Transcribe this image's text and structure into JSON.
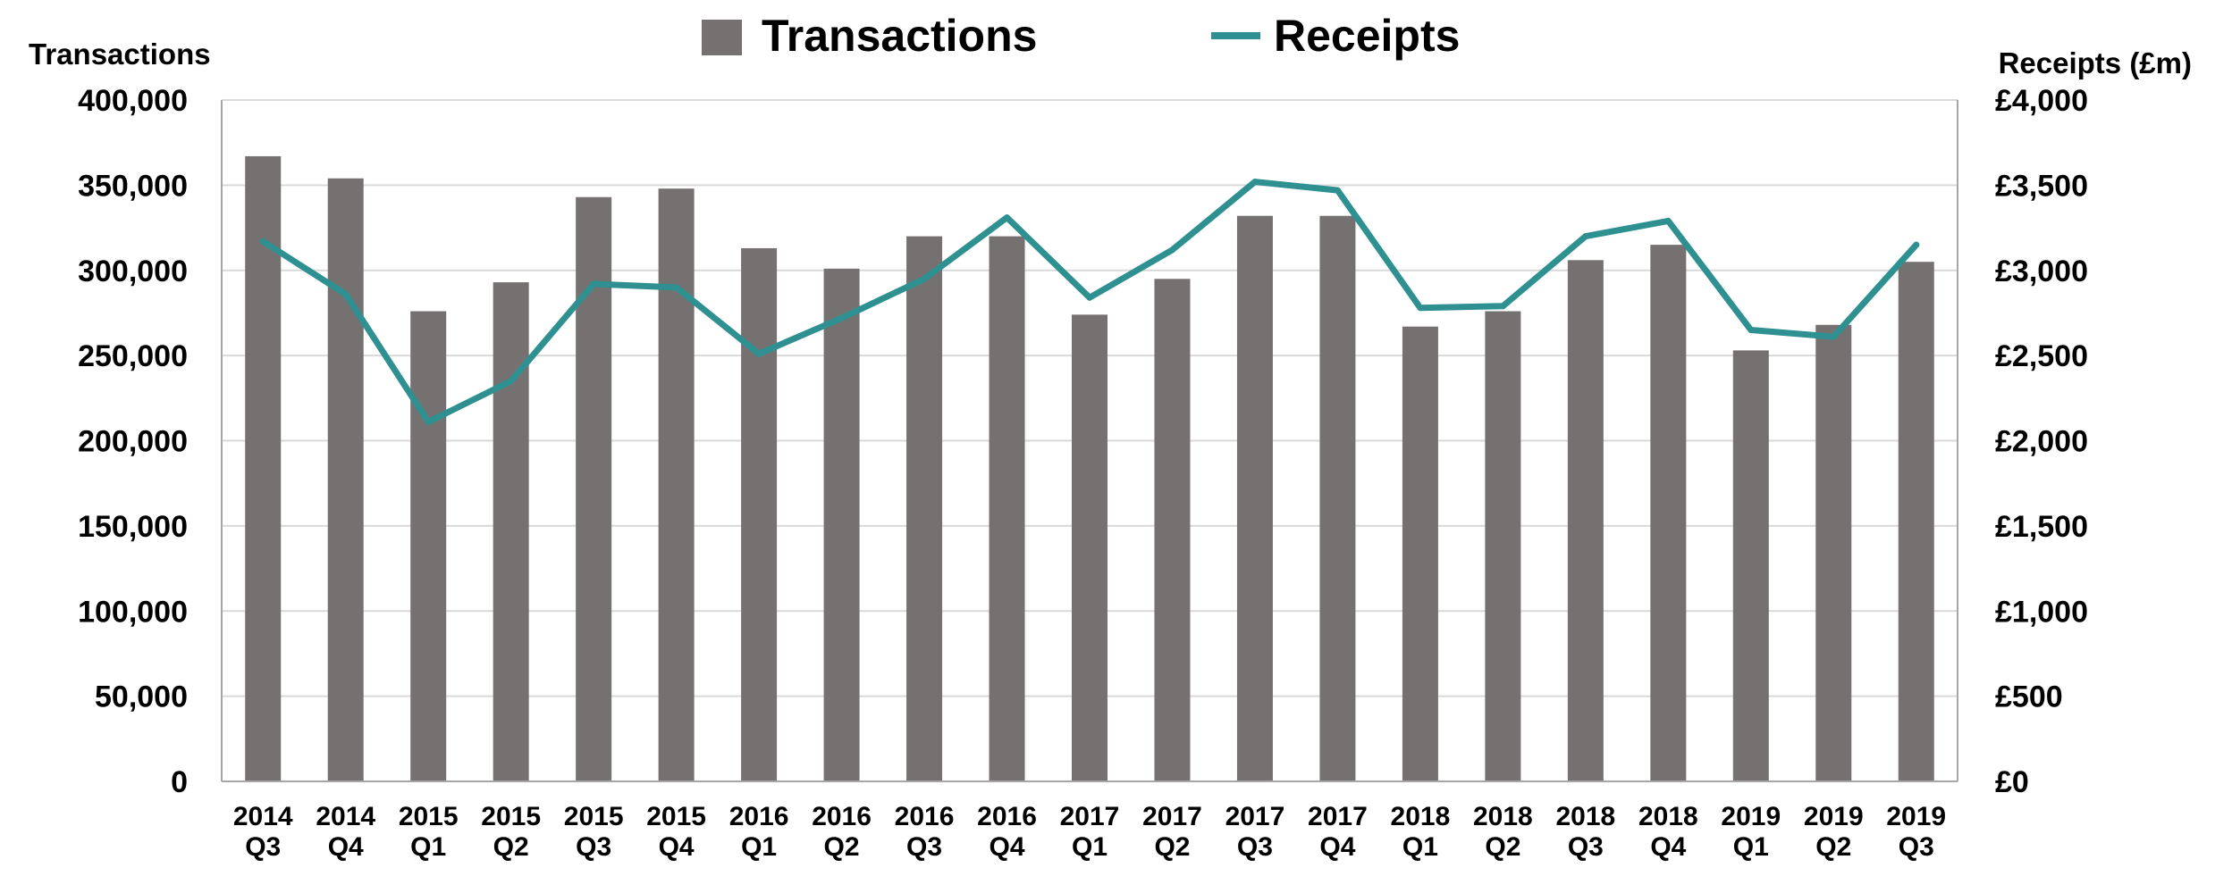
{
  "chart_data": {
    "type": "bar",
    "categories": [
      [
        "2014",
        "Q3"
      ],
      [
        "2014",
        "Q4"
      ],
      [
        "2015",
        "Q1"
      ],
      [
        "2015",
        "Q2"
      ],
      [
        "2015",
        "Q3"
      ],
      [
        "2015",
        "Q4"
      ],
      [
        "2016",
        "Q1"
      ],
      [
        "2016",
        "Q2"
      ],
      [
        "2016",
        "Q3"
      ],
      [
        "2016",
        "Q4"
      ],
      [
        "2017",
        "Q1"
      ],
      [
        "2017",
        "Q2"
      ],
      [
        "2017",
        "Q3"
      ],
      [
        "2017",
        "Q4"
      ],
      [
        "2018",
        "Q1"
      ],
      [
        "2018",
        "Q2"
      ],
      [
        "2018",
        "Q3"
      ],
      [
        "2018",
        "Q4"
      ],
      [
        "2019",
        "Q1"
      ],
      [
        "2019",
        "Q2"
      ],
      [
        "2019",
        "Q3"
      ]
    ],
    "series": [
      {
        "name": "Transactions",
        "type": "bar",
        "axis": "left",
        "values": [
          367000,
          354000,
          276000,
          293000,
          343000,
          348000,
          313000,
          301000,
          320000,
          320000,
          274000,
          295000,
          332000,
          332000,
          267000,
          276000,
          306000,
          315000,
          253000,
          268000,
          305000
        ]
      },
      {
        "name": "Receipts",
        "type": "line",
        "axis": "right",
        "values": [
          3170,
          2860,
          2110,
          2350,
          2920,
          2900,
          2510,
          2720,
          2950,
          3310,
          2840,
          3120,
          3520,
          3470,
          2780,
          2790,
          3200,
          3290,
          2650,
          2610,
          3150
        ]
      }
    ],
    "left_axis": {
      "title": "Transactions",
      "range": [
        0,
        400000
      ],
      "ticks": [
        "0",
        "50,000",
        "100,000",
        "150,000",
        "200,000",
        "250,000",
        "300,000",
        "350,000",
        "400,000"
      ]
    },
    "right_axis": {
      "title": "Receipts (£m)",
      "range": [
        0,
        4000
      ],
      "ticks": [
        "£0",
        "£500",
        "£1,000",
        "£1,500",
        "£2,000",
        "£2,500",
        "£3,000",
        "£3,500",
        "£4,000"
      ]
    },
    "grid": true,
    "legend": {
      "placement": "top-center",
      "entries": [
        "Transactions",
        "Receipts"
      ]
    },
    "colors": {
      "bar": "#767171",
      "line": "#2e9090",
      "grid": "#d9d9d9",
      "axis": "#a6a6a6"
    }
  }
}
